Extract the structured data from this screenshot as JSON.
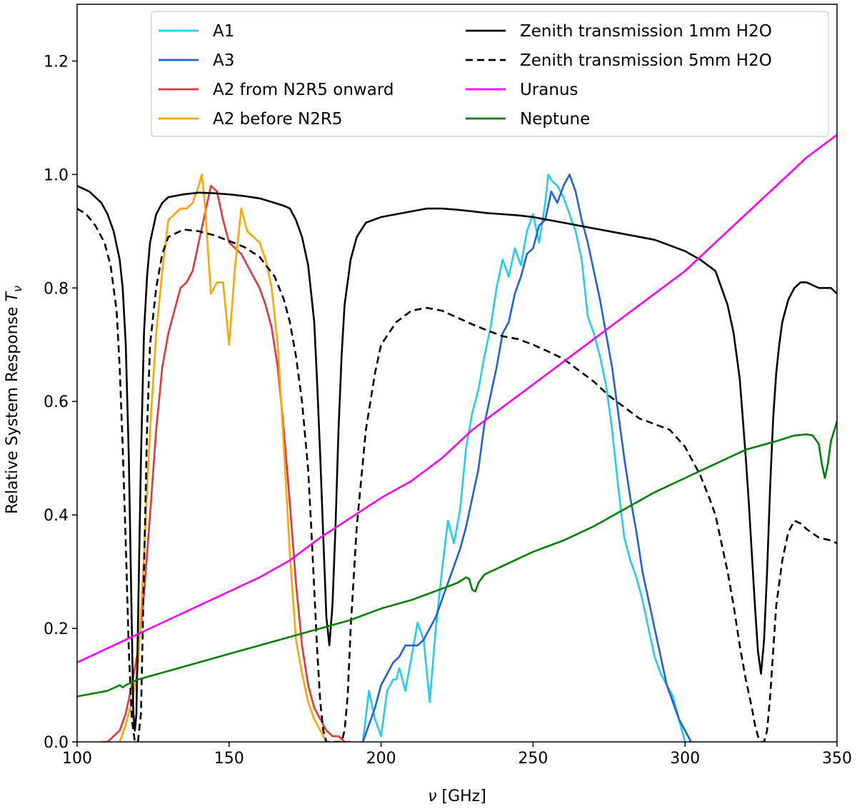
{
  "chart_data": {
    "type": "line",
    "xlabel_symbol": "ν",
    "xlabel_unit": "[GHz]",
    "ylabel_text": "Relative System Response",
    "ylabel_symbol": "T",
    "ylabel_sub": "ν",
    "xlim": [
      100,
      350
    ],
    "ylim": [
      0,
      1.3
    ],
    "xticks": [
      100,
      150,
      200,
      250,
      300,
      350
    ],
    "yticks": [
      0.0,
      0.2,
      0.4,
      0.6,
      0.8,
      1.0,
      1.2
    ],
    "xtick_labels": [
      "100",
      "150",
      "200",
      "250",
      "300",
      "350"
    ],
    "ytick_labels": [
      "0.0",
      "0.2",
      "0.4",
      "0.6",
      "0.8",
      "1.0",
      "1.2"
    ],
    "grid": false,
    "legend_position": "top",
    "series": [
      {
        "name": "A1",
        "color": "#22ccee",
        "dash": "solid",
        "x": [
          194,
          196,
          198,
          200,
          202,
          204,
          205,
          206,
          208,
          210,
          212,
          214,
          216,
          218,
          220,
          222,
          224,
          226,
          228,
          230,
          232,
          234,
          236,
          238,
          240,
          242,
          244,
          246,
          248,
          250,
          252,
          254,
          255,
          256,
          258,
          260,
          262,
          264,
          266,
          268,
          270,
          272,
          274,
          276,
          278,
          280,
          282,
          284,
          286,
          288,
          290,
          292,
          294,
          296,
          298,
          300
        ],
        "y": [
          0,
          0.09,
          0.04,
          0.01,
          0.09,
          0.11,
          0.11,
          0.13,
          0.09,
          0.15,
          0.21,
          0.18,
          0.07,
          0.2,
          0.3,
          0.39,
          0.35,
          0.41,
          0.52,
          0.58,
          0.62,
          0.68,
          0.73,
          0.8,
          0.85,
          0.82,
          0.87,
          0.84,
          0.9,
          0.93,
          0.88,
          0.95,
          1.0,
          0.99,
          0.98,
          0.96,
          0.93,
          0.9,
          0.85,
          0.75,
          0.72,
          0.68,
          0.63,
          0.55,
          0.45,
          0.36,
          0.32,
          0.29,
          0.25,
          0.2,
          0.15,
          0.12,
          0.1,
          0.08,
          0.04,
          0.0
        ]
      },
      {
        "name": "A3",
        "color": "#1f5fe0",
        "dash": "solid",
        "x": [
          194,
          196,
          198,
          200,
          202,
          204,
          206,
          208,
          210,
          212,
          214,
          216,
          218,
          220,
          222,
          224,
          226,
          228,
          230,
          232,
          234,
          236,
          238,
          240,
          242,
          244,
          246,
          248,
          250,
          252,
          254,
          256,
          258,
          260,
          262,
          264,
          266,
          268,
          270,
          272,
          274,
          276,
          278,
          280,
          282,
          284,
          286,
          288,
          290,
          292,
          294,
          296,
          298,
          300,
          302
        ],
        "y": [
          0,
          0.03,
          0.06,
          0.1,
          0.12,
          0.14,
          0.15,
          0.17,
          0.17,
          0.17,
          0.18,
          0.2,
          0.22,
          0.25,
          0.28,
          0.31,
          0.34,
          0.38,
          0.43,
          0.48,
          0.56,
          0.61,
          0.66,
          0.72,
          0.74,
          0.79,
          0.82,
          0.86,
          0.87,
          0.91,
          0.92,
          0.97,
          0.95,
          0.98,
          1.0,
          0.97,
          0.92,
          0.88,
          0.83,
          0.78,
          0.72,
          0.66,
          0.58,
          0.5,
          0.43,
          0.37,
          0.3,
          0.25,
          0.2,
          0.15,
          0.1,
          0.07,
          0.04,
          0.02,
          0.0
        ]
      },
      {
        "name": "A2 from N2R5 onward",
        "color": "#e8323c",
        "dash": "solid",
        "x": [
          108,
          110,
          112,
          114,
          116,
          118,
          120,
          122,
          124,
          126,
          128,
          130,
          132,
          134,
          136,
          138,
          140,
          142,
          144,
          146,
          148,
          150,
          152,
          154,
          156,
          158,
          160,
          162,
          164,
          166,
          168,
          170,
          172,
          174,
          176,
          178,
          180,
          182,
          184,
          186,
          188,
          190
        ],
        "y": [
          0,
          0.0,
          0.01,
          0.02,
          0.05,
          0.1,
          0.16,
          0.26,
          0.4,
          0.55,
          0.66,
          0.72,
          0.76,
          0.8,
          0.81,
          0.83,
          0.88,
          0.93,
          0.98,
          0.97,
          0.92,
          0.88,
          0.87,
          0.86,
          0.84,
          0.82,
          0.8,
          0.77,
          0.73,
          0.66,
          0.55,
          0.42,
          0.28,
          0.17,
          0.1,
          0.06,
          0.04,
          0.02,
          0.01,
          0.01,
          0.0,
          0.0
        ]
      },
      {
        "name": "A2 before N2R5",
        "color": "#ffa500",
        "dash": "solid",
        "x": [
          114,
          116,
          118,
          120,
          122,
          124,
          126,
          128,
          130,
          132,
          134,
          136,
          138,
          140,
          141,
          142,
          144,
          146,
          148,
          150,
          152,
          154,
          156,
          158,
          160,
          162,
          164,
          166,
          168,
          170,
          172,
          174,
          176,
          178,
          180,
          182
        ],
        "y": [
          0,
          0.03,
          0.07,
          0.13,
          0.33,
          0.55,
          0.72,
          0.83,
          0.92,
          0.93,
          0.94,
          0.94,
          0.95,
          0.98,
          1.0,
          0.95,
          0.79,
          0.81,
          0.81,
          0.7,
          0.84,
          0.94,
          0.9,
          0.89,
          0.88,
          0.85,
          0.8,
          0.7,
          0.52,
          0.33,
          0.18,
          0.12,
          0.07,
          0.04,
          0.02,
          0.0
        ]
      },
      {
        "name": "Zenith transmission 1mm H2O",
        "color": "#000000",
        "dash": "solid",
        "x": [
          100,
          104,
          108,
          110,
          112,
          114,
          115,
          116,
          117,
          118,
          118.5,
          119,
          119.5,
          120,
          121,
          122,
          123,
          124,
          126,
          128,
          130,
          135,
          140,
          145,
          150,
          155,
          160,
          165,
          168,
          170,
          172,
          174,
          176,
          178,
          179,
          180,
          181,
          182,
          183,
          184,
          185,
          186,
          187,
          188,
          190,
          192,
          195,
          200,
          205,
          210,
          215,
          220,
          225,
          230,
          235,
          240,
          245,
          250,
          255,
          260,
          265,
          270,
          275,
          280,
          285,
          290,
          295,
          300,
          305,
          310,
          312,
          314,
          316,
          318,
          319,
          320,
          321,
          322,
          323,
          324,
          325,
          326,
          327,
          328,
          329,
          330,
          331,
          332,
          334,
          336,
          338,
          340,
          344,
          348,
          350
        ],
        "y": [
          0.98,
          0.97,
          0.95,
          0.93,
          0.9,
          0.85,
          0.8,
          0.7,
          0.5,
          0.2,
          0.05,
          0.02,
          0.05,
          0.2,
          0.5,
          0.72,
          0.82,
          0.88,
          0.93,
          0.95,
          0.96,
          0.965,
          0.968,
          0.967,
          0.965,
          0.962,
          0.958,
          0.95,
          0.945,
          0.94,
          0.92,
          0.89,
          0.84,
          0.74,
          0.63,
          0.5,
          0.36,
          0.22,
          0.17,
          0.24,
          0.38,
          0.55,
          0.68,
          0.77,
          0.85,
          0.89,
          0.915,
          0.925,
          0.93,
          0.935,
          0.94,
          0.94,
          0.938,
          0.935,
          0.932,
          0.93,
          0.928,
          0.925,
          0.92,
          0.915,
          0.91,
          0.905,
          0.9,
          0.895,
          0.89,
          0.885,
          0.875,
          0.865,
          0.85,
          0.83,
          0.8,
          0.77,
          0.72,
          0.64,
          0.57,
          0.5,
          0.42,
          0.33,
          0.24,
          0.16,
          0.12,
          0.18,
          0.3,
          0.45,
          0.57,
          0.65,
          0.7,
          0.74,
          0.78,
          0.8,
          0.81,
          0.81,
          0.8,
          0.8,
          0.79
        ]
      },
      {
        "name": "Zenith transmission 5mm H2O",
        "color": "#000000",
        "dash": "dashed",
        "x": [
          100,
          103,
          106,
          109,
          111,
          113,
          114,
          115,
          116,
          117,
          118,
          119,
          120,
          121,
          122,
          123,
          124,
          126,
          128,
          130,
          135,
          140,
          145,
          150,
          155,
          160,
          165,
          168,
          170,
          172,
          174,
          176,
          177,
          178,
          179,
          180,
          181,
          182,
          183,
          184,
          185,
          186,
          187,
          188,
          189,
          190,
          192,
          195,
          198,
          200,
          205,
          210,
          215,
          220,
          225,
          230,
          235,
          240,
          245,
          250,
          255,
          260,
          265,
          270,
          275,
          280,
          285,
          290,
          295,
          300,
          305,
          308,
          310,
          312,
          314,
          316,
          318,
          320,
          322,
          323,
          324,
          325,
          326,
          327,
          328,
          329,
          330,
          332,
          334,
          336,
          338,
          340,
          344,
          348,
          350
        ],
        "y": [
          0.94,
          0.93,
          0.91,
          0.88,
          0.84,
          0.76,
          0.66,
          0.52,
          0.35,
          0.16,
          0.04,
          0.0,
          0.0,
          0.05,
          0.3,
          0.55,
          0.7,
          0.8,
          0.86,
          0.89,
          0.903,
          0.9,
          0.893,
          0.883,
          0.872,
          0.855,
          0.82,
          0.78,
          0.74,
          0.68,
          0.6,
          0.48,
          0.38,
          0.27,
          0.16,
          0.07,
          0.02,
          0.0,
          0.0,
          0.0,
          0.0,
          0.0,
          0.0,
          0.02,
          0.08,
          0.2,
          0.38,
          0.55,
          0.65,
          0.7,
          0.74,
          0.76,
          0.765,
          0.76,
          0.748,
          0.736,
          0.725,
          0.715,
          0.71,
          0.7,
          0.688,
          0.675,
          0.655,
          0.635,
          0.61,
          0.59,
          0.57,
          0.56,
          0.55,
          0.52,
          0.47,
          0.43,
          0.4,
          0.35,
          0.3,
          0.24,
          0.17,
          0.11,
          0.06,
          0.03,
          0.01,
          0.0,
          0.0,
          0.02,
          0.08,
          0.16,
          0.24,
          0.32,
          0.37,
          0.39,
          0.385,
          0.375,
          0.36,
          0.355,
          0.35
        ]
      },
      {
        "name": "Uranus",
        "color": "#ff00ff",
        "dash": "solid",
        "x": [
          100,
          120,
          140,
          160,
          170,
          180,
          200,
          210,
          220,
          230,
          240,
          250,
          260,
          270,
          280,
          290,
          300,
          310,
          320,
          330,
          340,
          350
        ],
        "y": [
          0.14,
          0.19,
          0.24,
          0.29,
          0.32,
          0.36,
          0.43,
          0.46,
          0.5,
          0.55,
          0.59,
          0.63,
          0.67,
          0.71,
          0.75,
          0.79,
          0.83,
          0.88,
          0.93,
          0.98,
          1.03,
          1.07
        ]
      },
      {
        "name": "Neptune",
        "color": "#008000",
        "dash": "solid",
        "x": [
          100,
          110,
          114,
          115,
          116,
          120,
          130,
          140,
          150,
          160,
          170,
          180,
          190,
          200,
          210,
          220,
          225,
          228,
          229,
          230,
          231,
          232,
          234,
          240,
          250,
          260,
          270,
          280,
          290,
          300,
          310,
          320,
          330,
          336,
          340,
          342,
          344,
          345,
          346,
          347,
          348,
          350
        ],
        "y": [
          0.08,
          0.09,
          0.1,
          0.096,
          0.1,
          0.11,
          0.125,
          0.14,
          0.155,
          0.17,
          0.185,
          0.2,
          0.215,
          0.235,
          0.25,
          0.27,
          0.28,
          0.29,
          0.287,
          0.268,
          0.265,
          0.28,
          0.295,
          0.31,
          0.335,
          0.355,
          0.38,
          0.41,
          0.44,
          0.465,
          0.49,
          0.515,
          0.53,
          0.54,
          0.542,
          0.54,
          0.525,
          0.49,
          0.465,
          0.49,
          0.53,
          0.565
        ]
      }
    ]
  }
}
